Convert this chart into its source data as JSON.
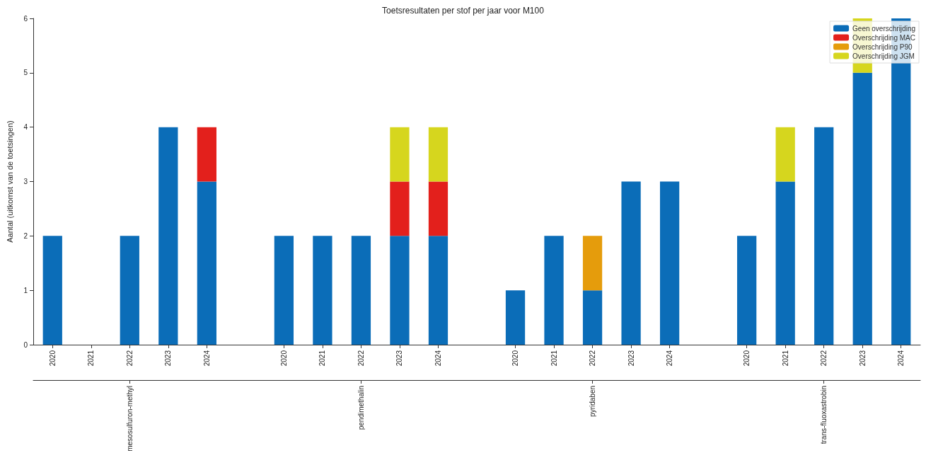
{
  "chart_data": {
    "type": "bar",
    "stacked": true,
    "title": "Toetsresultaten per stof per jaar voor M100",
    "ylabel": "Aantal (uitkomst van de toetsingen)",
    "categories": [
      "2020",
      "2021",
      "2022",
      "2023",
      "2024",
      null,
      "2020",
      "2021",
      "2022",
      "2023",
      "2024",
      null,
      "2020",
      "2021",
      "2022",
      "2023",
      "2024",
      null,
      "2020",
      "2021",
      "2022",
      "2023",
      "2024"
    ],
    "series": [
      {
        "name": "Geen overschrijding",
        "color": "#0b6db8",
        "values": [
          2,
          0,
          2,
          4,
          3,
          null,
          2,
          2,
          2,
          2,
          2,
          null,
          1,
          2,
          1,
          3,
          3,
          null,
          2,
          3,
          4,
          5,
          6
        ]
      },
      {
        "name": "Overschrijding MAC",
        "color": "#e3201c",
        "values": [
          0,
          0,
          0,
          0,
          1,
          null,
          0,
          0,
          0,
          1,
          1,
          null,
          0,
          0,
          0,
          0,
          0,
          null,
          0,
          0,
          0,
          0,
          0
        ]
      },
      {
        "name": "Overschrijding P90",
        "color": "#e59c0c",
        "values": [
          0,
          0,
          0,
          0,
          0,
          null,
          0,
          0,
          0,
          0,
          0,
          null,
          0,
          0,
          1,
          0,
          0,
          null,
          0,
          0,
          0,
          0,
          0
        ]
      },
      {
        "name": "Overschrijding JGM",
        "color": "#d6d61e",
        "values": [
          0,
          0,
          0,
          0,
          0,
          null,
          0,
          0,
          0,
          1,
          1,
          null,
          0,
          0,
          0,
          0,
          0,
          null,
          0,
          1,
          0,
          1,
          0
        ]
      }
    ],
    "annotations": [
      "mesosulfuron-methyl",
      "pendimethalin",
      "pyridaben",
      "trans-fluoxastrobin"
    ],
    "ylim": [
      0,
      6
    ],
    "yticks": [
      0,
      1,
      2,
      3,
      4,
      5,
      6
    ],
    "grid": false,
    "legend": "top right"
  }
}
